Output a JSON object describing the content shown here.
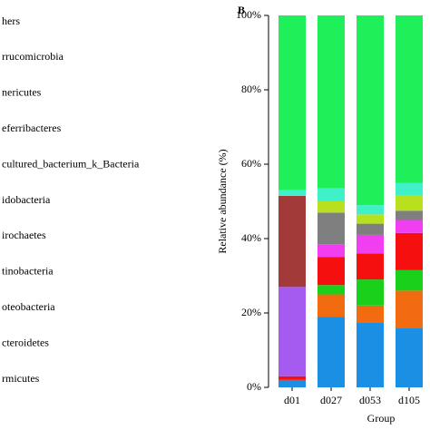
{
  "chart_data": {
    "type": "stacked-bar",
    "panel_label": "B",
    "y_label": "Relative abundance (%)",
    "x_label": "Group",
    "categories": [
      "d01",
      "d027",
      "d053",
      "d105"
    ],
    "ylim": [
      0,
      100
    ],
    "yticks": [
      {
        "value": 0,
        "label": "0%"
      },
      {
        "value": 20,
        "label": "20%"
      },
      {
        "value": 40,
        "label": "40%"
      },
      {
        "value": 60,
        "label": "60%"
      },
      {
        "value": 80,
        "label": "80%"
      },
      {
        "value": 100,
        "label": "100%"
      }
    ],
    "series": [
      {
        "name": "rmicutes",
        "color": "#1a8fe3",
        "values": [
          2,
          19,
          17.5,
          16
        ]
      },
      {
        "name": "cteroidetes",
        "color": "#f26b11",
        "values": [
          0,
          6,
          4.5,
          10
        ]
      },
      {
        "name": "oteobacteria",
        "color": "#19d11a",
        "values": [
          0,
          2.5,
          7,
          5.5
        ]
      },
      {
        "name": "tinobacteria",
        "color": "#f50f0f",
        "values": [
          1,
          7.5,
          7,
          10
        ]
      },
      {
        "name": "irochaetes",
        "color": "#f03ef0",
        "values": [
          0,
          3.5,
          5,
          3.5
        ]
      },
      {
        "name": "idobacteria",
        "color": "#7f7f7f",
        "values": [
          0,
          8.5,
          3,
          2.5
        ]
      },
      {
        "name": "cultured_bacterium_k_Bacteria",
        "color": "#b8e01e",
        "values": [
          0,
          3,
          2.5,
          4
        ]
      },
      {
        "name": "eferribacteres",
        "color": "#a55af0",
        "values": [
          24,
          0,
          0,
          0
        ]
      },
      {
        "name": "nericutes",
        "color": "#a33a3a",
        "values": [
          24.5,
          0,
          0,
          0
        ]
      },
      {
        "name": "rrucomicrobia",
        "color": "#3ff0c8",
        "values": [
          1.5,
          3.5,
          2.5,
          3.5
        ]
      },
      {
        "name": "hers",
        "color": "#1ff05a",
        "values": [
          47,
          46.5,
          51,
          45
        ]
      }
    ]
  }
}
